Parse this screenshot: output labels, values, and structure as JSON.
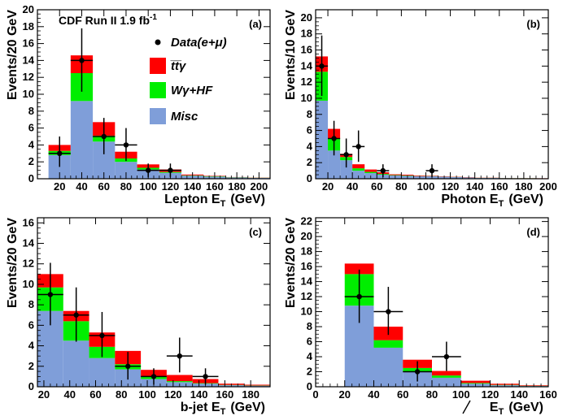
{
  "title": "CDF Run II 1.9 fb",
  "title_sup": "-1",
  "colors": {
    "ttgamma": "#ff0000",
    "wgamma_hf": "#00ee00",
    "misc": "#7f9ed9"
  },
  "legend": [
    {
      "key": "data",
      "label": "Data(e+μ)"
    },
    {
      "key": "ttgamma",
      "label": "t̅t̅γ"
    },
    {
      "key": "wgamma_hf",
      "label": "Wγ+HF"
    },
    {
      "key": "misc",
      "label": "Misc"
    }
  ],
  "chart_data": [
    {
      "type": "bar",
      "panel": "(a)",
      "xlabel": "Lepton E",
      "xlabel_sub": "T",
      "xlabel_unit": "(GeV)",
      "ylabel": "Events/20 GeV",
      "xlim": [
        0,
        210
      ],
      "ylim": [
        0,
        20
      ],
      "xticks": [
        20,
        40,
        60,
        80,
        100,
        120,
        140,
        160,
        180,
        200
      ],
      "yticks": [
        0,
        2,
        4,
        6,
        8,
        10,
        12,
        14,
        16,
        18,
        20
      ],
      "bins": [
        [
          10,
          30
        ],
        [
          30,
          50
        ],
        [
          50,
          70
        ],
        [
          70,
          90
        ],
        [
          90,
          110
        ],
        [
          110,
          130
        ],
        [
          130,
          150
        ],
        [
          150,
          170
        ],
        [
          170,
          190
        ],
        [
          190,
          210
        ]
      ],
      "series": [
        {
          "key": "misc",
          "values": [
            2.8,
            9.2,
            4.4,
            2.0,
            1.1,
            0.7,
            0.35,
            0.25,
            0.15,
            0.1
          ]
        },
        {
          "key": "wgamma_hf",
          "values": [
            0.5,
            3.3,
            0.7,
            0.4,
            0.2,
            0.1,
            0.05,
            0.05,
            0.03,
            0.02
          ]
        },
        {
          "key": "ttgamma",
          "values": [
            0.7,
            2.1,
            1.6,
            0.8,
            0.4,
            0.3,
            0.1,
            0.05,
            0.02,
            0.02
          ]
        }
      ],
      "data_points": [
        {
          "x": 20,
          "y": 3,
          "err": [
            1.6,
            2.0
          ]
        },
        {
          "x": 40,
          "y": 14,
          "err": [
            3.7,
            3.8
          ]
        },
        {
          "x": 60,
          "y": 5,
          "err": [
            2.1,
            2.2
          ]
        },
        {
          "x": 80,
          "y": 4,
          "err": [
            1.9,
            2.0
          ]
        },
        {
          "x": 100,
          "y": 1,
          "err": [
            0.8,
            0.8
          ]
        },
        {
          "x": 120,
          "y": 1,
          "err": [
            0.8,
            0.8
          ]
        }
      ]
    },
    {
      "type": "bar",
      "panel": "(b)",
      "xlabel": "Photon E",
      "xlabel_sub": "T",
      "xlabel_unit": "(GeV)",
      "ylabel": "Events/10 GeV",
      "xlim": [
        10,
        200
      ],
      "ylim": [
        0,
        21
      ],
      "xticks": [
        20,
        40,
        60,
        80,
        100,
        120,
        140,
        160,
        180,
        200
      ],
      "yticks": [
        0,
        2,
        4,
        6,
        8,
        10,
        12,
        14,
        16,
        18,
        20
      ],
      "bins": [
        [
          10,
          20
        ],
        [
          20,
          30
        ],
        [
          30,
          40
        ],
        [
          40,
          50
        ],
        [
          50,
          60
        ],
        [
          60,
          70
        ],
        [
          70,
          80
        ],
        [
          80,
          90
        ],
        [
          90,
          100
        ],
        [
          100,
          110
        ],
        [
          110,
          120
        ],
        [
          120,
          130
        ],
        [
          130,
          140
        ],
        [
          140,
          150
        ],
        [
          150,
          160
        ],
        [
          160,
          170
        ],
        [
          170,
          180
        ],
        [
          180,
          190
        ],
        [
          190,
          200
        ]
      ],
      "series": [
        {
          "key": "misc",
          "values": [
            9.7,
            3.5,
            2.3,
            1.0,
            0.7,
            0.5,
            0.4,
            0.35,
            0.3,
            0.3,
            0.25,
            0.2,
            0.15,
            0.1,
            0.1,
            0.08,
            0.06,
            0.05,
            0.04
          ]
        },
        {
          "key": "wgamma_hf",
          "values": [
            3.6,
            1.5,
            0.4,
            0.3,
            0.15,
            0.1,
            0.05,
            0.05,
            0.03,
            0.03,
            0.02,
            0.02,
            0.01,
            0.01,
            0.01,
            0.01,
            0.01,
            0.01,
            0.01
          ]
        },
        {
          "key": "ttgamma",
          "values": [
            1.9,
            1.2,
            0.4,
            0.5,
            0.3,
            0.2,
            0.1,
            0.1,
            0.07,
            0.05,
            0.04,
            0.03,
            0.03,
            0.02,
            0.02,
            0.01,
            0.01,
            0.01,
            0.01
          ]
        }
      ],
      "data_points": [
        {
          "x": 15,
          "y": 14,
          "err": [
            3.7,
            3.8
          ]
        },
        {
          "x": 25,
          "y": 5,
          "err": [
            2.1,
            2.2
          ]
        },
        {
          "x": 35,
          "y": 3,
          "err": [
            1.6,
            2.0
          ]
        },
        {
          "x": 45,
          "y": 4,
          "err": [
            1.9,
            2.0
          ]
        },
        {
          "x": 65,
          "y": 1,
          "err": [
            0.8,
            0.8
          ]
        },
        {
          "x": 105,
          "y": 1,
          "err": [
            0.8,
            0.8
          ]
        }
      ]
    },
    {
      "type": "bar",
      "panel": "(c)",
      "xlabel": "b-jet E",
      "xlabel_sub": "T",
      "xlabel_unit": "(GeV)",
      "ylabel": "Events/20 GeV",
      "xlim": [
        15,
        195
      ],
      "ylim": [
        0,
        16.5
      ],
      "xticks": [
        20,
        40,
        60,
        80,
        100,
        120,
        140,
        160,
        180
      ],
      "yticks": [
        0,
        2,
        4,
        6,
        8,
        10,
        12,
        14,
        16
      ],
      "bins": [
        [
          15,
          35
        ],
        [
          35,
          55
        ],
        [
          55,
          75
        ],
        [
          75,
          95
        ],
        [
          95,
          115
        ],
        [
          115,
          135
        ],
        [
          135,
          155
        ],
        [
          155,
          175
        ],
        [
          175,
          195
        ]
      ],
      "series": [
        {
          "key": "misc",
          "values": [
            7.4,
            4.5,
            2.8,
            1.7,
            0.75,
            0.45,
            0.3,
            0.15,
            0.1
          ]
        },
        {
          "key": "wgamma_hf",
          "values": [
            2.3,
            1.9,
            1.1,
            0.5,
            0.2,
            0.1,
            0.05,
            0.03,
            0.02
          ]
        },
        {
          "key": "ttgamma",
          "values": [
            1.3,
            1.0,
            1.4,
            1.3,
            0.7,
            0.6,
            0.4,
            0.12,
            0.08
          ]
        }
      ],
      "data_points": [
        {
          "x": 25,
          "y": 9,
          "err": [
            3.0,
            3.1
          ]
        },
        {
          "x": 45,
          "y": 7,
          "err": [
            2.6,
            2.7
          ]
        },
        {
          "x": 65,
          "y": 5,
          "err": [
            2.1,
            2.3
          ]
        },
        {
          "x": 85,
          "y": 2,
          "err": [
            1.3,
            1.4
          ]
        },
        {
          "x": 105,
          "y": 1,
          "err": [
            0.8,
            0.8
          ]
        },
        {
          "x": 125,
          "y": 3,
          "err": [
            1.6,
            1.8
          ]
        },
        {
          "x": 145,
          "y": 1,
          "err": [
            0.8,
            0.8
          ]
        }
      ]
    },
    {
      "type": "bar",
      "panel": "(d)",
      "xlabel": "E",
      "xlabel_sub": "T",
      "xlabel_unit": "(GeV)",
      "ylabel": "Events/20 GeV",
      "xlim": [
        0,
        160
      ],
      "ylim": [
        0,
        22.5
      ],
      "xticks": [
        0,
        20,
        40,
        60,
        80,
        100,
        120,
        140,
        160
      ],
      "yticks": [
        0,
        2,
        4,
        6,
        8,
        10,
        12,
        14,
        16,
        18,
        20,
        22
      ],
      "bins": [
        [
          20,
          40
        ],
        [
          40,
          60
        ],
        [
          60,
          80
        ],
        [
          80,
          100
        ],
        [
          100,
          120
        ],
        [
          120,
          140
        ],
        [
          140,
          160
        ]
      ],
      "series": [
        {
          "key": "misc",
          "values": [
            10.8,
            5.2,
            2.0,
            1.2,
            0.4,
            0.2,
            0.1
          ]
        },
        {
          "key": "wgamma_hf",
          "values": [
            4.2,
            1.0,
            0.5,
            0.3,
            0.1,
            0.05,
            0.03
          ]
        },
        {
          "key": "ttgamma",
          "values": [
            1.4,
            1.8,
            1.1,
            0.6,
            0.3,
            0.15,
            0.07
          ]
        }
      ],
      "data_points": [
        {
          "x": 30,
          "y": 12,
          "err": [
            3.5,
            3.6
          ]
        },
        {
          "x": 50,
          "y": 10,
          "err": [
            3.1,
            3.3
          ]
        },
        {
          "x": 70,
          "y": 2,
          "err": [
            1.3,
            1.4
          ]
        },
        {
          "x": 90,
          "y": 4,
          "err": [
            1.9,
            2.0
          ]
        }
      ]
    }
  ]
}
